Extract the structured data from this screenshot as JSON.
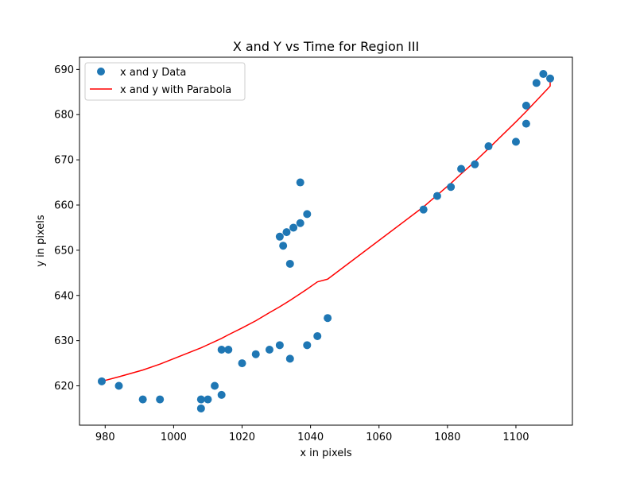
{
  "chart_data": {
    "type": "scatter",
    "title": "X and Y vs Time for Region III",
    "xlabel": "x in pixels",
    "ylabel": "y in pixels",
    "xlim": [
      972.5,
      1116.5
    ],
    "ylim": [
      611.3,
      692.7
    ],
    "xticks": [
      980,
      1000,
      1020,
      1040,
      1060,
      1080,
      1100
    ],
    "yticks": [
      620,
      630,
      640,
      650,
      660,
      670,
      680,
      690
    ],
    "grid": false,
    "legend_position": "top-left",
    "series": [
      {
        "name": "x and y Data",
        "kind": "scatter",
        "color": "#1f77b4",
        "points": [
          [
            979,
            621
          ],
          [
            984,
            620
          ],
          [
            991,
            617
          ],
          [
            996,
            617
          ],
          [
            1008,
            617
          ],
          [
            1008,
            615
          ],
          [
            1010,
            617
          ],
          [
            1012,
            620
          ],
          [
            1014,
            618
          ],
          [
            1014,
            628
          ],
          [
            1016,
            628
          ],
          [
            1020,
            625
          ],
          [
            1024,
            627
          ],
          [
            1028,
            628
          ],
          [
            1031,
            629
          ],
          [
            1034,
            626
          ],
          [
            1039,
            629
          ],
          [
            1042,
            631
          ],
          [
            1045,
            635
          ],
          [
            1031,
            653
          ],
          [
            1032,
            651
          ],
          [
            1033,
            654
          ],
          [
            1034,
            647
          ],
          [
            1035,
            655
          ],
          [
            1037,
            656
          ],
          [
            1037,
            665
          ],
          [
            1039,
            658
          ],
          [
            1073,
            659
          ],
          [
            1077,
            662
          ],
          [
            1081,
            664
          ],
          [
            1084,
            668
          ],
          [
            1088,
            669
          ],
          [
            1092,
            673
          ],
          [
            1100,
            674
          ],
          [
            1103,
            678
          ],
          [
            1103,
            682
          ],
          [
            1106,
            687
          ],
          [
            1108,
            689
          ],
          [
            1110,
            688
          ]
        ]
      },
      {
        "name": "x and y with Parabola",
        "kind": "line",
        "color": "#ff0000",
        "points": [
          [
            979,
            621
          ],
          [
            984,
            622
          ],
          [
            991,
            623.5
          ],
          [
            996,
            624.8
          ],
          [
            1008,
            628.4
          ],
          [
            1010,
            629.1
          ],
          [
            1012,
            629.8
          ],
          [
            1014,
            630.5
          ],
          [
            1016,
            631.3
          ],
          [
            1020,
            632.8
          ],
          [
            1024,
            634.4
          ],
          [
            1028,
            636.2
          ],
          [
            1031,
            637.5
          ],
          [
            1034,
            638.9
          ],
          [
            1037,
            640.4
          ],
          [
            1039,
            641.4
          ],
          [
            1042,
            643
          ],
          [
            1045,
            643.6
          ],
          [
            1073,
            659.6
          ],
          [
            1077,
            662.2
          ],
          [
            1081,
            664.8
          ],
          [
            1084,
            666.9
          ],
          [
            1088,
            669.6
          ],
          [
            1092,
            672.5
          ],
          [
            1100,
            678.4
          ],
          [
            1103,
            680.7
          ],
          [
            1106,
            683.1
          ],
          [
            1108,
            684.7
          ],
          [
            1110,
            686.3
          ],
          [
            1110,
            688.3
          ]
        ]
      }
    ]
  }
}
